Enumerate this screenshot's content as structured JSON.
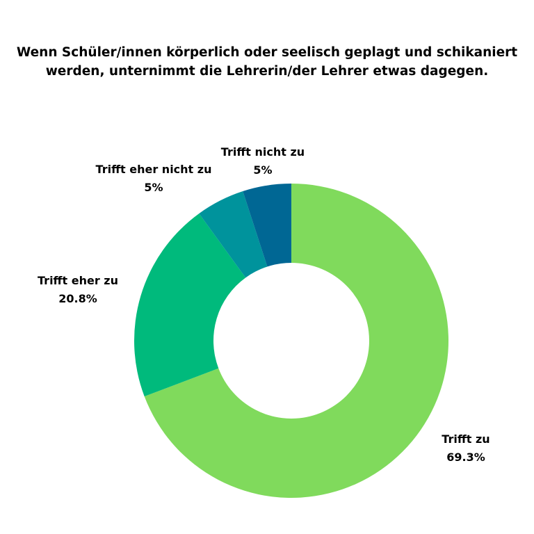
{
  "chart_data": {
    "type": "pie",
    "title_lines": [
      "Wenn Schüler/innen körperlich oder seelisch geplagt und schikaniert",
      "werden, unternimmt die Lehrerin/der Lehrer etwas dagegen."
    ],
    "slices": [
      {
        "label": "Trifft zu",
        "value": 69.3,
        "value_label": "69.3%",
        "color": "#80DA5C"
      },
      {
        "label": "Trifft eher zu",
        "value": 20.8,
        "value_label": "20.8%",
        "color": "#00BA7C"
      },
      {
        "label": "Trifft eher nicht zu",
        "value": 5,
        "value_label": "5%",
        "color": "#00939C"
      },
      {
        "label": "Trifft nicht zu",
        "value": 5,
        "value_label": "5%",
        "color": "#006794"
      }
    ],
    "donut": true,
    "legend": "none",
    "direction": "clockwise",
    "start": "top"
  }
}
